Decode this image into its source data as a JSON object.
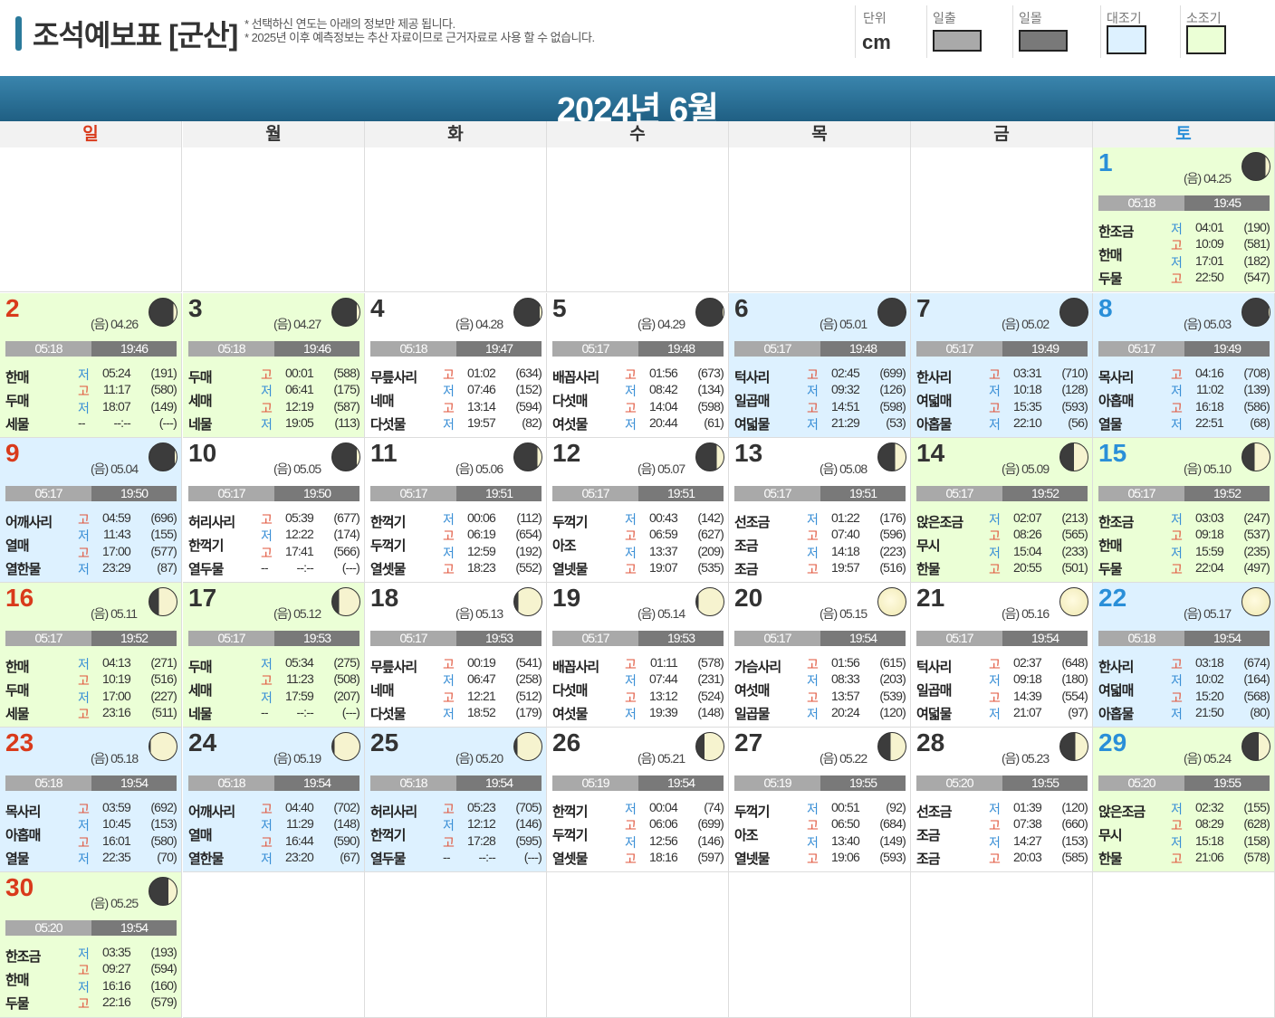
{
  "header": {
    "title": "조석예보표 [군산]",
    "notes": [
      "* 선택하신 연도는 아래의 정보만 제공 됩니다.",
      "* 2025년 이후 예측정보는 추산 자료이므로 근거자료로 사용 할 수 없습니다."
    ],
    "unit_label": "단위",
    "unit_value": "cm",
    "legend": [
      {
        "label": "일출",
        "color": "#a9a9a9"
      },
      {
        "label": "일몰",
        "color": "#797979"
      },
      {
        "label": "대조기",
        "color": "#ddf1ff"
      },
      {
        "label": "소조기",
        "color": "#ebffd6"
      }
    ]
  },
  "month_title": "2024년 6월",
  "weekdays": [
    "일",
    "월",
    "화",
    "수",
    "목",
    "금",
    "토"
  ],
  "colors": {
    "spring_tide": "#ddf1ff",
    "neap_tide": "#ebffd6",
    "high_tide": "#e0533a",
    "low_tide": "#3a8fd6",
    "sunday": "#d93a1b",
    "saturday": "#2a8fd8"
  },
  "days": [
    {
      "day": "1",
      "lunar": "(음) 04.25",
      "moon_phase": 0.85,
      "bg": "green",
      "sunrise": "05:18",
      "sunset": "19:45",
      "names": [
        "한조금",
        "한매",
        "두물"
      ],
      "tides": [
        [
          "저",
          "04:01",
          "(190)"
        ],
        [
          "고",
          "10:09",
          "(581)"
        ],
        [
          "저",
          "17:01",
          "(182)"
        ],
        [
          "고",
          "22:50",
          "(547)"
        ]
      ]
    },
    {
      "day": "2",
      "lunar": "(음) 04.26",
      "moon_phase": 0.88,
      "bg": "green",
      "sunrise": "05:18",
      "sunset": "19:46",
      "names": [
        "한매",
        "두매",
        "세물"
      ],
      "tides": [
        [
          "저",
          "05:24",
          "(191)"
        ],
        [
          "고",
          "11:17",
          "(580)"
        ],
        [
          "저",
          "18:07",
          "(149)"
        ],
        [
          "--",
          "--:--",
          "(---)"
        ]
      ]
    },
    {
      "day": "3",
      "lunar": "(음) 04.27",
      "moon_phase": 0.9,
      "bg": "green",
      "sunrise": "05:18",
      "sunset": "19:46",
      "names": [
        "두매",
        "세매",
        "네물"
      ],
      "tides": [
        [
          "고",
          "00:01",
          "(588)"
        ],
        [
          "저",
          "06:41",
          "(175)"
        ],
        [
          "고",
          "12:19",
          "(587)"
        ],
        [
          "저",
          "19:05",
          "(113)"
        ]
      ]
    },
    {
      "day": "4",
      "lunar": "(음) 04.28",
      "moon_phase": 0.93,
      "bg": "white",
      "sunrise": "05:18",
      "sunset": "19:47",
      "names": [
        "무릎사리",
        "네매",
        "다섯물"
      ],
      "tides": [
        [
          "고",
          "01:02",
          "(634)"
        ],
        [
          "저",
          "07:46",
          "(152)"
        ],
        [
          "고",
          "13:14",
          "(594)"
        ],
        [
          "저",
          "19:57",
          "(82)"
        ]
      ]
    },
    {
      "day": "5",
      "lunar": "(음) 04.29",
      "moon_phase": 0.97,
      "bg": "white",
      "sunrise": "05:17",
      "sunset": "19:48",
      "names": [
        "배꼽사리",
        "다섯매",
        "여섯물"
      ],
      "tides": [
        [
          "고",
          "01:56",
          "(673)"
        ],
        [
          "저",
          "08:42",
          "(134)"
        ],
        [
          "고",
          "14:04",
          "(598)"
        ],
        [
          "저",
          "20:44",
          "(61)"
        ]
      ]
    },
    {
      "day": "6",
      "lunar": "(음) 05.01",
      "moon_phase": 1.0,
      "bg": "blue",
      "sunrise": "05:17",
      "sunset": "19:48",
      "names": [
        "턱사리",
        "일곱매",
        "여덟물"
      ],
      "tides": [
        [
          "고",
          "02:45",
          "(699)"
        ],
        [
          "저",
          "09:32",
          "(126)"
        ],
        [
          "고",
          "14:51",
          "(598)"
        ],
        [
          "저",
          "21:29",
          "(53)"
        ]
      ]
    },
    {
      "day": "7",
      "lunar": "(음) 05.02",
      "moon_phase": 1.0,
      "bg": "blue",
      "sunrise": "05:17",
      "sunset": "19:49",
      "names": [
        "한사리",
        "여덟매",
        "아홉물"
      ],
      "tides": [
        [
          "고",
          "03:31",
          "(710)"
        ],
        [
          "저",
          "10:18",
          "(128)"
        ],
        [
          "고",
          "15:35",
          "(593)"
        ],
        [
          "저",
          "22:10",
          "(56)"
        ]
      ]
    },
    {
      "day": "8",
      "lunar": "(음) 05.03",
      "moon_phase": 0.97,
      "bg": "blue",
      "sunrise": "05:17",
      "sunset": "19:49",
      "names": [
        "목사리",
        "아홉매",
        "열물"
      ],
      "tides": [
        [
          "고",
          "04:16",
          "(708)"
        ],
        [
          "저",
          "11:02",
          "(139)"
        ],
        [
          "고",
          "16:18",
          "(586)"
        ],
        [
          "저",
          "22:51",
          "(68)"
        ]
      ]
    },
    {
      "day": "9",
      "lunar": "(음) 05.04",
      "moon_phase": 0.93,
      "bg": "blue",
      "sunrise": "05:17",
      "sunset": "19:50",
      "names": [
        "어깨사리",
        "열매",
        "열한물"
      ],
      "tides": [
        [
          "고",
          "04:59",
          "(696)"
        ],
        [
          "저",
          "11:43",
          "(155)"
        ],
        [
          "고",
          "17:00",
          "(577)"
        ],
        [
          "저",
          "23:29",
          "(87)"
        ]
      ]
    },
    {
      "day": "10",
      "lunar": "(음) 05.05",
      "moon_phase": 0.9,
      "bg": "white",
      "sunrise": "05:17",
      "sunset": "19:50",
      "names": [
        "허리사리",
        "한꺽기",
        "열두물"
      ],
      "tides": [
        [
          "고",
          "05:39",
          "(677)"
        ],
        [
          "저",
          "12:22",
          "(174)"
        ],
        [
          "고",
          "17:41",
          "(566)"
        ],
        [
          "--",
          "--:--",
          "(---)"
        ]
      ]
    },
    {
      "day": "11",
      "lunar": "(음) 05.06",
      "moon_phase": 0.85,
      "bg": "white",
      "sunrise": "05:17",
      "sunset": "19:51",
      "names": [
        "한꺽기",
        "두꺽기",
        "열셋물"
      ],
      "tides": [
        [
          "저",
          "00:06",
          "(112)"
        ],
        [
          "고",
          "06:19",
          "(654)"
        ],
        [
          "저",
          "12:59",
          "(192)"
        ],
        [
          "고",
          "18:23",
          "(552)"
        ]
      ]
    },
    {
      "day": "12",
      "lunar": "(음) 05.07",
      "moon_phase": 0.75,
      "bg": "white",
      "sunrise": "05:17",
      "sunset": "19:51",
      "names": [
        "두꺽기",
        "아조",
        "열넷물"
      ],
      "tides": [
        [
          "저",
          "00:43",
          "(142)"
        ],
        [
          "고",
          "06:59",
          "(627)"
        ],
        [
          "저",
          "13:37",
          "(209)"
        ],
        [
          "고",
          "19:07",
          "(535)"
        ]
      ]
    },
    {
      "day": "13",
      "lunar": "(음) 05.08",
      "moon_phase": 0.62,
      "bg": "white",
      "sunrise": "05:17",
      "sunset": "19:51",
      "names": [
        "선조금",
        "조금",
        "조금"
      ],
      "tides": [
        [
          "저",
          "01:22",
          "(176)"
        ],
        [
          "고",
          "07:40",
          "(596)"
        ],
        [
          "저",
          "14:18",
          "(223)"
        ],
        [
          "고",
          "19:57",
          "(516)"
        ]
      ]
    },
    {
      "day": "14",
      "lunar": "(음) 05.09",
      "moon_phase": 0.5,
      "bg": "green",
      "sunrise": "05:17",
      "sunset": "19:52",
      "names": [
        "앉은조금",
        "무시",
        "한물"
      ],
      "tides": [
        [
          "저",
          "02:07",
          "(213)"
        ],
        [
          "고",
          "08:26",
          "(565)"
        ],
        [
          "저",
          "15:04",
          "(233)"
        ],
        [
          "고",
          "20:55",
          "(501)"
        ]
      ]
    },
    {
      "day": "15",
      "lunar": "(음) 05.10",
      "moon_phase": 0.45,
      "bg": "green",
      "sunrise": "05:17",
      "sunset": "19:52",
      "names": [
        "한조금",
        "한매",
        "두물"
      ],
      "tides": [
        [
          "저",
          "03:03",
          "(247)"
        ],
        [
          "고",
          "09:18",
          "(537)"
        ],
        [
          "저",
          "15:59",
          "(235)"
        ],
        [
          "고",
          "22:04",
          "(497)"
        ]
      ]
    },
    {
      "day": "16",
      "lunar": "(음) 05.11",
      "moon_phase": 0.35,
      "bg": "green",
      "sunrise": "05:17",
      "sunset": "19:52",
      "names": [
        "한매",
        "두매",
        "세물"
      ],
      "tides": [
        [
          "저",
          "04:13",
          "(271)"
        ],
        [
          "고",
          "10:19",
          "(516)"
        ],
        [
          "저",
          "17:00",
          "(227)"
        ],
        [
          "고",
          "23:16",
          "(511)"
        ]
      ]
    },
    {
      "day": "17",
      "lunar": "(음) 05.12",
      "moon_phase": 0.25,
      "bg": "green",
      "sunrise": "05:17",
      "sunset": "19:53",
      "names": [
        "두매",
        "세매",
        "네물"
      ],
      "tides": [
        [
          "저",
          "05:34",
          "(275)"
        ],
        [
          "고",
          "11:23",
          "(508)"
        ],
        [
          "저",
          "17:59",
          "(207)"
        ],
        [
          "--",
          "--:--",
          "(---)"
        ]
      ]
    },
    {
      "day": "18",
      "lunar": "(음) 05.13",
      "moon_phase": 0.15,
      "bg": "white",
      "sunrise": "05:17",
      "sunset": "19:53",
      "names": [
        "무릎사리",
        "네매",
        "다섯물"
      ],
      "tides": [
        [
          "고",
          "00:19",
          "(541)"
        ],
        [
          "저",
          "06:47",
          "(258)"
        ],
        [
          "고",
          "12:21",
          "(512)"
        ],
        [
          "저",
          "18:52",
          "(179)"
        ]
      ]
    },
    {
      "day": "19",
      "lunar": "(음) 05.14",
      "moon_phase": 0.08,
      "bg": "white",
      "sunrise": "05:17",
      "sunset": "19:53",
      "names": [
        "배꼽사리",
        "다섯매",
        "여섯물"
      ],
      "tides": [
        [
          "고",
          "01:11",
          "(578)"
        ],
        [
          "저",
          "07:44",
          "(231)"
        ],
        [
          "고",
          "13:12",
          "(524)"
        ],
        [
          "저",
          "19:39",
          "(148)"
        ]
      ]
    },
    {
      "day": "20",
      "lunar": "(음) 05.15",
      "moon_phase": 0.0,
      "bg": "white",
      "sunrise": "05:17",
      "sunset": "19:54",
      "names": [
        "가슴사리",
        "여섯매",
        "일곱물"
      ],
      "tides": [
        [
          "고",
          "01:56",
          "(615)"
        ],
        [
          "저",
          "08:33",
          "(203)"
        ],
        [
          "고",
          "13:57",
          "(539)"
        ],
        [
          "저",
          "20:24",
          "(120)"
        ]
      ]
    },
    {
      "day": "21",
      "lunar": "(음) 05.16",
      "moon_phase": 0.0,
      "bg": "white",
      "sunrise": "05:17",
      "sunset": "19:54",
      "names": [
        "턱사리",
        "일곱매",
        "여덟물"
      ],
      "tides": [
        [
          "고",
          "02:37",
          "(648)"
        ],
        [
          "저",
          "09:18",
          "(180)"
        ],
        [
          "고",
          "14:39",
          "(554)"
        ],
        [
          "저",
          "21:07",
          "(97)"
        ]
      ]
    },
    {
      "day": "22",
      "lunar": "(음) 05.17",
      "moon_phase": 0.02,
      "bg": "blue",
      "sunrise": "05:18",
      "sunset": "19:54",
      "names": [
        "한사리",
        "여덟매",
        "아홉물"
      ],
      "tides": [
        [
          "고",
          "03:18",
          "(674)"
        ],
        [
          "저",
          "10:02",
          "(164)"
        ],
        [
          "고",
          "15:20",
          "(568)"
        ],
        [
          "저",
          "21:50",
          "(80)"
        ]
      ]
    },
    {
      "day": "23",
      "lunar": "(음) 05.18",
      "moon_phase": 0.05,
      "bg": "blue",
      "sunrise": "05:18",
      "sunset": "19:54",
      "names": [
        "목사리",
        "아홉매",
        "열물"
      ],
      "tides": [
        [
          "고",
          "03:59",
          "(692)"
        ],
        [
          "저",
          "10:45",
          "(153)"
        ],
        [
          "고",
          "16:01",
          "(580)"
        ],
        [
          "저",
          "22:35",
          "(70)"
        ]
      ]
    },
    {
      "day": "24",
      "lunar": "(음) 05.19",
      "moon_phase": 0.08,
      "bg": "blue",
      "sunrise": "05:18",
      "sunset": "19:54",
      "names": [
        "어깨사리",
        "열매",
        "열한물"
      ],
      "tides": [
        [
          "고",
          "04:40",
          "(702)"
        ],
        [
          "저",
          "11:29",
          "(148)"
        ],
        [
          "고",
          "16:44",
          "(590)"
        ],
        [
          "저",
          "23:20",
          "(67)"
        ]
      ]
    },
    {
      "day": "25",
      "lunar": "(음) 05.20",
      "moon_phase": 0.12,
      "bg": "blue",
      "sunrise": "05:18",
      "sunset": "19:54",
      "names": [
        "허리사리",
        "한꺽기",
        "열두물"
      ],
      "tides": [
        [
          "고",
          "05:23",
          "(705)"
        ],
        [
          "저",
          "12:12",
          "(146)"
        ],
        [
          "고",
          "17:28",
          "(595)"
        ],
        [
          "--",
          "--:--",
          "(---)"
        ]
      ]
    },
    {
      "day": "26",
      "lunar": "(음) 05.21",
      "moon_phase": 0.3,
      "bg": "white",
      "sunrise": "05:19",
      "sunset": "19:54",
      "names": [
        "한꺽기",
        "두꺽기",
        "열셋물"
      ],
      "tides": [
        [
          "저",
          "00:04",
          "(74)"
        ],
        [
          "고",
          "06:06",
          "(699)"
        ],
        [
          "저",
          "12:56",
          "(146)"
        ],
        [
          "고",
          "18:16",
          "(597)"
        ]
      ]
    },
    {
      "day": "27",
      "lunar": "(음) 05.22",
      "moon_phase": 0.45,
      "bg": "white",
      "sunrise": "05:19",
      "sunset": "19:55",
      "names": [
        "두꺽기",
        "아조",
        "열넷물"
      ],
      "tides": [
        [
          "저",
          "00:51",
          "(92)"
        ],
        [
          "고",
          "06:50",
          "(684)"
        ],
        [
          "저",
          "13:40",
          "(149)"
        ],
        [
          "고",
          "19:06",
          "(593)"
        ]
      ]
    },
    {
      "day": "28",
      "lunar": "(음) 05.23",
      "moon_phase": 0.55,
      "bg": "white",
      "sunrise": "05:20",
      "sunset": "19:55",
      "names": [
        "선조금",
        "조금",
        "조금"
      ],
      "tides": [
        [
          "저",
          "01:39",
          "(120)"
        ],
        [
          "고",
          "07:38",
          "(660)"
        ],
        [
          "저",
          "14:27",
          "(153)"
        ],
        [
          "고",
          "20:03",
          "(585)"
        ]
      ]
    },
    {
      "day": "29",
      "lunar": "(음) 05.24",
      "moon_phase": 0.6,
      "bg": "green",
      "sunrise": "05:20",
      "sunset": "19:55",
      "names": [
        "앉은조금",
        "무시",
        "한물"
      ],
      "tides": [
        [
          "저",
          "02:32",
          "(155)"
        ],
        [
          "고",
          "08:29",
          "(628)"
        ],
        [
          "저",
          "15:18",
          "(158)"
        ],
        [
          "고",
          "21:06",
          "(578)"
        ]
      ]
    },
    {
      "day": "30",
      "lunar": "(음) 05.25",
      "moon_phase": 0.7,
      "bg": "green",
      "sunrise": "05:20",
      "sunset": "19:54",
      "names": [
        "한조금",
        "한매",
        "두물"
      ],
      "tides": [
        [
          "저",
          "03:35",
          "(193)"
        ],
        [
          "고",
          "09:27",
          "(594)"
        ],
        [
          "저",
          "16:16",
          "(160)"
        ],
        [
          "고",
          "22:16",
          "(579)"
        ]
      ]
    }
  ]
}
